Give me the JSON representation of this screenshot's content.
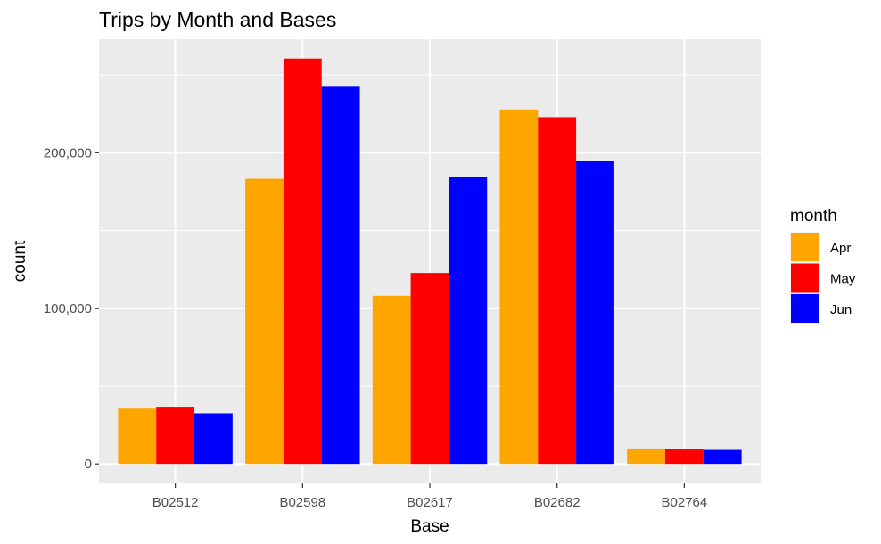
{
  "chart_data": {
    "type": "bar",
    "title": "Trips by Month and Bases",
    "xlabel": "Base",
    "ylabel": "count",
    "categories": [
      "B02512",
      "B02598",
      "B02617",
      "B02682",
      "B02764"
    ],
    "series": [
      {
        "name": "Apr",
        "color": "#FFA500",
        "values": [
          35536,
          183263,
          108001,
          227808,
          9908
        ]
      },
      {
        "name": "May",
        "color": "#FF0000",
        "values": [
          36765,
          260549,
          122734,
          222883,
          9504
        ]
      },
      {
        "name": "Jun",
        "color": "#0000FF",
        "values": [
          32509,
          242975,
          184460,
          194926,
          8974
        ]
      }
    ],
    "ylim": [
      -12500,
      273000
    ],
    "yticks": [
      0,
      100000,
      200000
    ],
    "ytick_labels": [
      "0",
      "100,000",
      "200,000"
    ],
    "grid": true,
    "legend": {
      "title": "month",
      "position": "right"
    }
  }
}
